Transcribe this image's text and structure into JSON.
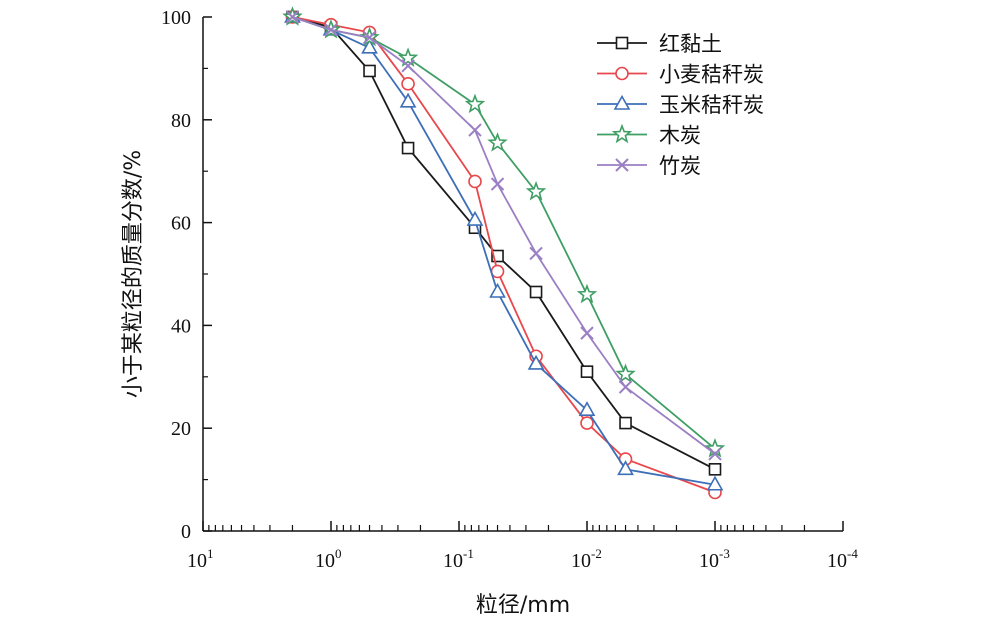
{
  "chart_data": {
    "type": "line",
    "x_scale": "log",
    "x_reversed": true,
    "xlabel": "粒径/mm",
    "ylabel": "小于某粒径的质量分数/%",
    "xlim": [
      10,
      0.0001
    ],
    "ylim": [
      0,
      100
    ],
    "yticks": [
      0,
      20,
      40,
      60,
      80,
      100
    ],
    "xtick_labels": [
      {
        "base": "10",
        "exp": "1",
        "value": 10
      },
      {
        "base": "10",
        "exp": "0",
        "value": 1
      },
      {
        "base": "10",
        "exp": "-1",
        "value": 0.1
      },
      {
        "base": "10",
        "exp": "-2",
        "value": 0.01
      },
      {
        "base": "10",
        "exp": "-3",
        "value": 0.001
      },
      {
        "base": "10",
        "exp": "-4",
        "value": 0.0001
      }
    ],
    "grid": false,
    "legend_position": "top-right",
    "series": [
      {
        "name": "红黏土",
        "color": "#1a1a1a",
        "marker": "square",
        "x": [
          2,
          1,
          0.5,
          0.25,
          0.075,
          0.05,
          0.025,
          0.01,
          0.005,
          0.001
        ],
        "y": [
          100,
          98,
          89.5,
          74.5,
          59,
          53.5,
          46.5,
          31,
          21,
          12
        ]
      },
      {
        "name": "小麦秸秆炭",
        "color": "#e8474c",
        "marker": "circle",
        "x": [
          2,
          1,
          0.5,
          0.25,
          0.075,
          0.05,
          0.025,
          0.01,
          0.005,
          0.001
        ],
        "y": [
          100,
          98.5,
          97,
          87,
          68,
          50.5,
          34,
          21,
          14,
          7.5
        ]
      },
      {
        "name": "玉米秸秆炭",
        "color": "#3d6fb8",
        "marker": "triangle",
        "x": [
          2,
          1,
          0.5,
          0.25,
          0.075,
          0.05,
          0.025,
          0.01,
          0.005,
          0.001
        ],
        "y": [
          100,
          97.5,
          94,
          83.5,
          60.5,
          46.5,
          32.5,
          23.5,
          12,
          9
        ]
      },
      {
        "name": "木炭",
        "color": "#3f9e64",
        "marker": "star",
        "x": [
          2,
          1,
          0.5,
          0.25,
          0.075,
          0.05,
          0.025,
          0.01,
          0.005,
          0.001
        ],
        "y": [
          100,
          97.5,
          96,
          92,
          83,
          75.5,
          66,
          46,
          30.5,
          16
        ]
      },
      {
        "name": "竹炭",
        "color": "#9b7fc4",
        "marker": "x",
        "x": [
          2,
          1,
          0.5,
          0.25,
          0.075,
          0.05,
          0.025,
          0.01,
          0.005,
          0.001
        ],
        "y": [
          100,
          97.5,
          96,
          90.5,
          78,
          67.5,
          54,
          38.5,
          28,
          15
        ]
      }
    ]
  }
}
